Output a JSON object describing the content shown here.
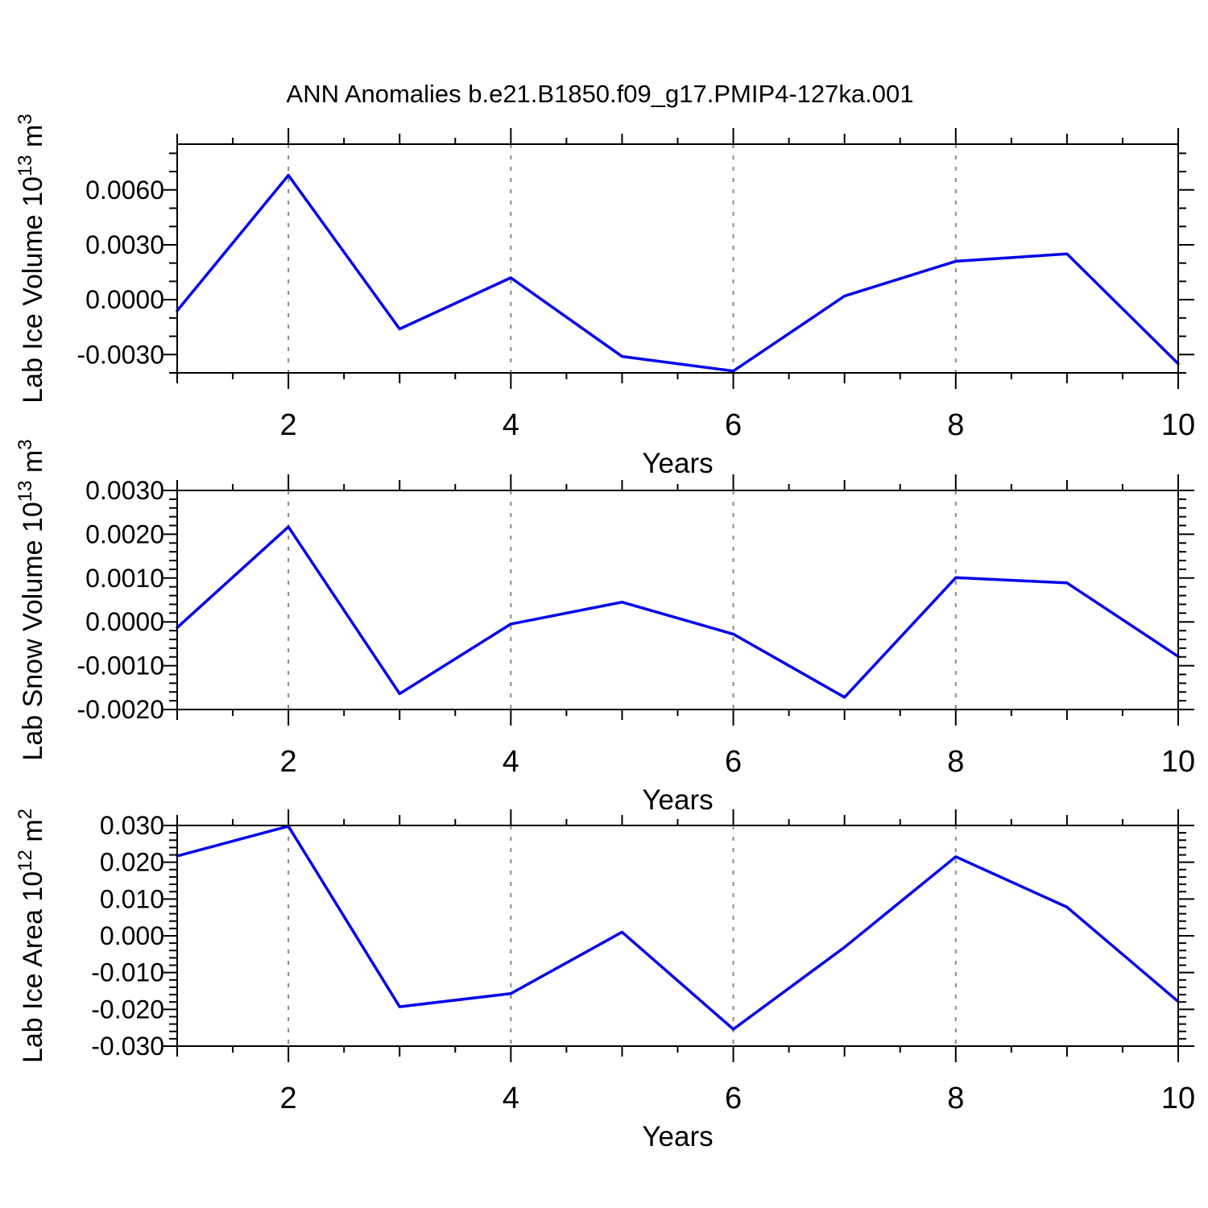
{
  "title": "ANN Anomalies b.e21.B1850.f09_g17.PMIP4-127ka.001",
  "figure": {
    "background": "#FFFFFF",
    "line_color": "#0000EE",
    "grid_color": "#8A8A8A",
    "frame_color": "#000000",
    "text_color": "#000000"
  },
  "x_axis": {
    "label": "Years",
    "range": [
      1,
      10
    ],
    "labeled_ticks": [
      2,
      4,
      6,
      8,
      10
    ],
    "medium_ticks": [
      1,
      3,
      5,
      7,
      9
    ],
    "minor_tick_step": 0.5,
    "grid_years": [
      2,
      4,
      6,
      8
    ],
    "grid_style": "dashed"
  },
  "chart_data": [
    {
      "type": "line",
      "id": "lab-ice-volume",
      "ylabel": "Lab Ice Volume 10^13 m^3",
      "ylabel_parts": [
        {
          "text": "Lab Ice Volume 10",
          "sup": false
        },
        {
          "text": "13",
          "sup": true
        },
        {
          "text": " m",
          "sup": false
        },
        {
          "text": "3",
          "sup": true
        }
      ],
      "xlabel": "Years",
      "x": [
        1,
        2,
        3,
        4,
        5,
        6,
        7,
        8,
        9,
        10
      ],
      "values": [
        -0.0006,
        0.0068,
        -0.0016,
        0.0012,
        -0.0031,
        -0.0039,
        0.0002,
        0.0021,
        0.0025,
        -0.0035
      ],
      "ylim": [
        -0.004,
        0.0085
      ],
      "y_major_ticks": [
        {
          "value": 0.006,
          "label": "0.0060"
        },
        {
          "value": 0.003,
          "label": "0.0030"
        },
        {
          "value": 0.0,
          "label": "0.0000"
        },
        {
          "value": -0.003,
          "label": "-0.0030"
        }
      ],
      "y_minor_step": 0.001
    },
    {
      "type": "line",
      "id": "lab-snow-volume",
      "ylabel": "Lab Snow Volume 10^13 m^3",
      "ylabel_parts": [
        {
          "text": "Lab Snow Volume 10",
          "sup": false
        },
        {
          "text": "13",
          "sup": true
        },
        {
          "text": " m",
          "sup": false
        },
        {
          "text": "3",
          "sup": true
        }
      ],
      "xlabel": "Years",
      "x": [
        1,
        2,
        3,
        4,
        5,
        6,
        7,
        8,
        9,
        10
      ],
      "values": [
        -0.00013,
        0.00217,
        -0.00164,
        -5e-05,
        0.00045,
        -0.00028,
        -0.00172,
        0.00101,
        0.00089,
        -0.00079
      ],
      "ylim": [
        -0.002,
        0.003
      ],
      "y_major_ticks": [
        {
          "value": 0.003,
          "label": "0.0030"
        },
        {
          "value": 0.002,
          "label": "0.0020"
        },
        {
          "value": 0.001,
          "label": "0.0010"
        },
        {
          "value": 0.0,
          "label": "0.0000"
        },
        {
          "value": -0.001,
          "label": "-0.0010"
        },
        {
          "value": -0.002,
          "label": "-0.0020"
        }
      ],
      "y_minor_step": 0.0002
    },
    {
      "type": "line",
      "id": "lab-ice-area",
      "ylabel": "Lab Ice Area 10^12 m^2",
      "ylabel_parts": [
        {
          "text": "Lab Ice Area 10",
          "sup": false
        },
        {
          "text": "12",
          "sup": true
        },
        {
          "text": " m",
          "sup": false
        },
        {
          "text": "2",
          "sup": true
        }
      ],
      "xlabel": "Years",
      "x": [
        1,
        2,
        3,
        4,
        5,
        6,
        7,
        8,
        9,
        10
      ],
      "values": [
        0.0217,
        0.0298,
        -0.0193,
        -0.0157,
        0.001,
        -0.0254,
        -0.0031,
        0.0215,
        0.0078,
        -0.0179
      ],
      "ylim": [
        -0.03,
        0.03
      ],
      "y_major_ticks": [
        {
          "value": 0.03,
          "label": "0.030"
        },
        {
          "value": 0.02,
          "label": "0.020"
        },
        {
          "value": 0.01,
          "label": "0.010"
        },
        {
          "value": 0.0,
          "label": "0.000"
        },
        {
          "value": -0.01,
          "label": "-0.010"
        },
        {
          "value": -0.02,
          "label": "-0.020"
        },
        {
          "value": -0.03,
          "label": "-0.030"
        }
      ],
      "y_minor_step": 0.002
    }
  ]
}
